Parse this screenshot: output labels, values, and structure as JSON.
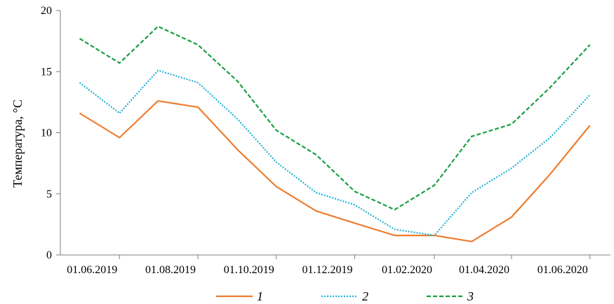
{
  "chart_data": {
    "type": "line",
    "title": "",
    "xlabel": "",
    "ylabel": "Температура, °С",
    "ylim": [
      0,
      20
    ],
    "yticks": [
      0,
      5,
      10,
      15,
      20
    ],
    "xlim": [
      "2019-04-16",
      "2020-06-17"
    ],
    "xtick_values": [
      "2019-06-01",
      "2019-08-01",
      "2019-10-01",
      "2019-12-01",
      "2020-02-01",
      "2020-04-01",
      "2020-06-01"
    ],
    "xtick_labels": [
      "01.06.2019",
      "01.08.2019",
      "01.10.2019",
      "01.12.2019",
      "01.02.2020",
      "01.04.2020",
      "01.06.2020"
    ],
    "grid": false,
    "legend_position": "bottom",
    "x": [
      "2019-05-01",
      "2019-06-01",
      "2019-07-01",
      "2019-08-01",
      "2019-09-01",
      "2019-10-01",
      "2019-11-01",
      "2019-12-01",
      "2020-01-01",
      "2020-02-01",
      "2020-03-01",
      "2020-04-01",
      "2020-05-01",
      "2020-06-01"
    ],
    "series": [
      {
        "name": "1",
        "color": "#ED7D31",
        "style": "solid",
        "values": [
          11.6,
          9.6,
          12.6,
          12.1,
          8.6,
          5.6,
          3.6,
          2.6,
          1.6,
          1.6,
          1.1,
          3.1,
          6.6,
          10.6
        ]
      },
      {
        "name": "2",
        "color": "#1FB3D6",
        "style": "dotted",
        "values": [
          14.1,
          11.6,
          15.1,
          14.1,
          11.1,
          7.6,
          5.1,
          4.1,
          2.1,
          1.6,
          5.1,
          7.1,
          9.6,
          13.1
        ]
      },
      {
        "name": "3",
        "color": "#1A9E45",
        "style": "dashed",
        "values": [
          17.7,
          15.7,
          18.7,
          17.2,
          14.2,
          10.2,
          8.2,
          5.2,
          3.7,
          5.7,
          9.7,
          10.7,
          13.7,
          17.2
        ]
      }
    ]
  }
}
